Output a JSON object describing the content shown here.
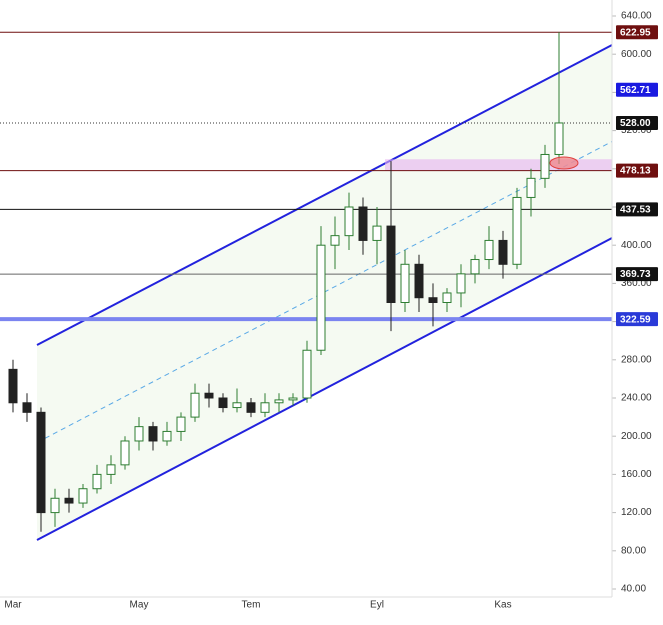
{
  "chart_data": {
    "type": "candlestick",
    "categories": [
      "Mar",
      null,
      null,
      null,
      null,
      null,
      null,
      null,
      null,
      "May",
      null,
      null,
      null,
      null,
      null,
      null,
      null,
      "Tem",
      null,
      null,
      null,
      null,
      null,
      null,
      null,
      null,
      "Eyl",
      null,
      null,
      null,
      null,
      null,
      null,
      null,
      null,
      "Kas",
      null,
      null,
      null,
      null
    ],
    "open": [
      270,
      235,
      225,
      120,
      135,
      130,
      145,
      160,
      170,
      195,
      210,
      195,
      205,
      220,
      245,
      240,
      230,
      235,
      225,
      235,
      238,
      240,
      290,
      400,
      410,
      440,
      405,
      420,
      340,
      380,
      345,
      340,
      350,
      370,
      385,
      405,
      380,
      450,
      470,
      495
    ],
    "high": [
      280,
      245,
      230,
      145,
      145,
      150,
      170,
      180,
      200,
      220,
      215,
      215,
      225,
      255,
      255,
      245,
      250,
      240,
      245,
      245,
      245,
      300,
      420,
      430,
      455,
      450,
      440,
      488,
      395,
      390,
      360,
      355,
      380,
      390,
      420,
      415,
      460,
      480,
      505,
      622.95
    ],
    "low": [
      225,
      215,
      100,
      105,
      120,
      125,
      140,
      150,
      165,
      185,
      185,
      190,
      195,
      215,
      230,
      225,
      225,
      220,
      220,
      225,
      232,
      235,
      285,
      375,
      395,
      390,
      380,
      310,
      330,
      330,
      315,
      330,
      335,
      360,
      375,
      365,
      375,
      430,
      460,
      485
    ],
    "close": [
      235,
      225,
      120,
      135,
      130,
      145,
      160,
      170,
      195,
      210,
      195,
      205,
      220,
      245,
      240,
      230,
      235,
      225,
      235,
      238,
      240,
      290,
      400,
      410,
      440,
      405,
      420,
      340,
      380,
      345,
      340,
      350,
      370,
      385,
      405,
      380,
      450,
      470,
      495,
      528
    ],
    "up_color": "#2e7d32",
    "down_color": "#222222",
    "ylim": [
      40,
      640
    ],
    "yticks": [
      {
        "value": 40,
        "label": "40.00"
      },
      {
        "value": 80,
        "label": "80.00"
      },
      {
        "value": 120,
        "label": "120.00"
      },
      {
        "value": 160,
        "label": "160.00"
      },
      {
        "value": 200,
        "label": "200.00"
      },
      {
        "value": 240,
        "label": "240.00"
      },
      {
        "value": 280,
        "label": "280.00"
      },
      {
        "value": 320,
        "label": "320.00"
      },
      {
        "value": 360,
        "label": "360.00"
      },
      {
        "value": 400,
        "label": "400.00"
      },
      {
        "value": 440,
        "label": "440.00"
      },
      {
        "value": 480,
        "label": "480.00"
      },
      {
        "value": 520,
        "label": "520.00"
      },
      {
        "value": 560,
        "label": "560.00"
      },
      {
        "value": 600,
        "label": "600.00"
      },
      {
        "value": 640,
        "label": "640.00"
      }
    ],
    "levels": [
      {
        "value": 622.95,
        "label": "622.95",
        "color": "#6e0f0f",
        "line": "solid"
      },
      {
        "value": 562.71,
        "label": "562.71",
        "color": "#1a1ae0",
        "line": "none"
      },
      {
        "value": 528.0,
        "label": "528.00",
        "color": "#111111",
        "line": "dotted"
      },
      {
        "value": 478.13,
        "label": "478.13",
        "color": "#6e0f0f",
        "line": "solid"
      },
      {
        "value": 437.53,
        "label": "437.53",
        "color": "#111111",
        "line": "solid"
      },
      {
        "value": 369.73,
        "label": "369.73",
        "color": "#111111",
        "line": "gray"
      },
      {
        "value": 322.59,
        "label": "322.59",
        "color": "#2a3ad8",
        "line": "thick"
      }
    ],
    "channel": {
      "upper": [
        295.5,
        609.6
      ],
      "lower": [
        91.3,
        407.5
      ],
      "color": "#2222dd"
    },
    "zone": [
      478,
      490
    ]
  }
}
